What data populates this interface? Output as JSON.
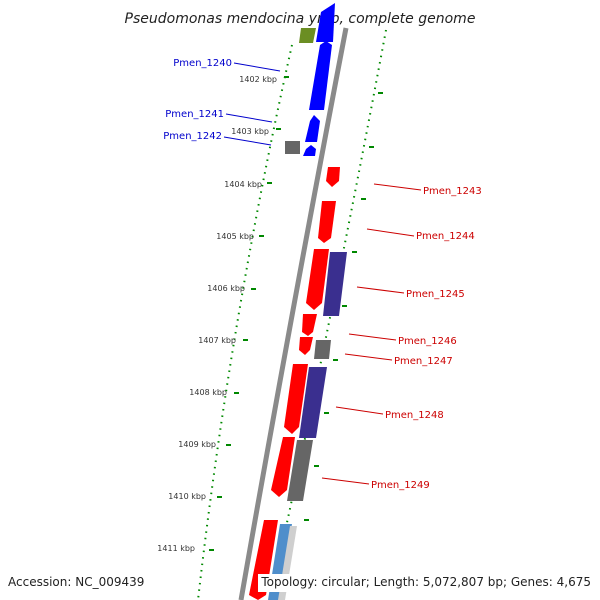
{
  "title": "Pseudomonas mendocina ymp, complete genome",
  "footer": {
    "accession": "Accession: NC_009439",
    "summary": "Topology: circular; Length: 5,072,807 bp; Genes: 4,675"
  },
  "colors": {
    "forward_label": "#0000cc",
    "reverse_label": "#cc0000",
    "dotted_track": "#008800",
    "backbone": "#888888",
    "gene_blue": "#0000ff",
    "gene_red": "#ff0000",
    "gene_purple": "#3a2f8f",
    "gene_gray": "#666666",
    "gene_olive": "#6b8e23"
  },
  "ticks": [
    {
      "label": "1402 kbp"
    },
    {
      "label": "1403 kbp"
    },
    {
      "label": "1404 kbp"
    },
    {
      "label": "1405 kbp"
    },
    {
      "label": "1406 kbp"
    },
    {
      "label": "1407 kbp"
    },
    {
      "label": "1408 kbp"
    },
    {
      "label": "1409 kbp"
    },
    {
      "label": "1410 kbp"
    },
    {
      "label": "1411 kbp"
    }
  ],
  "gene_labels": {
    "left": [
      "Pmen_1240",
      "Pmen_1241",
      "Pmen_1242"
    ],
    "right": [
      "Pmen_1243",
      "Pmen_1244",
      "Pmen_1245",
      "Pmen_1246",
      "Pmen_1247",
      "Pmen_1248",
      "Pmen_1249"
    ]
  }
}
